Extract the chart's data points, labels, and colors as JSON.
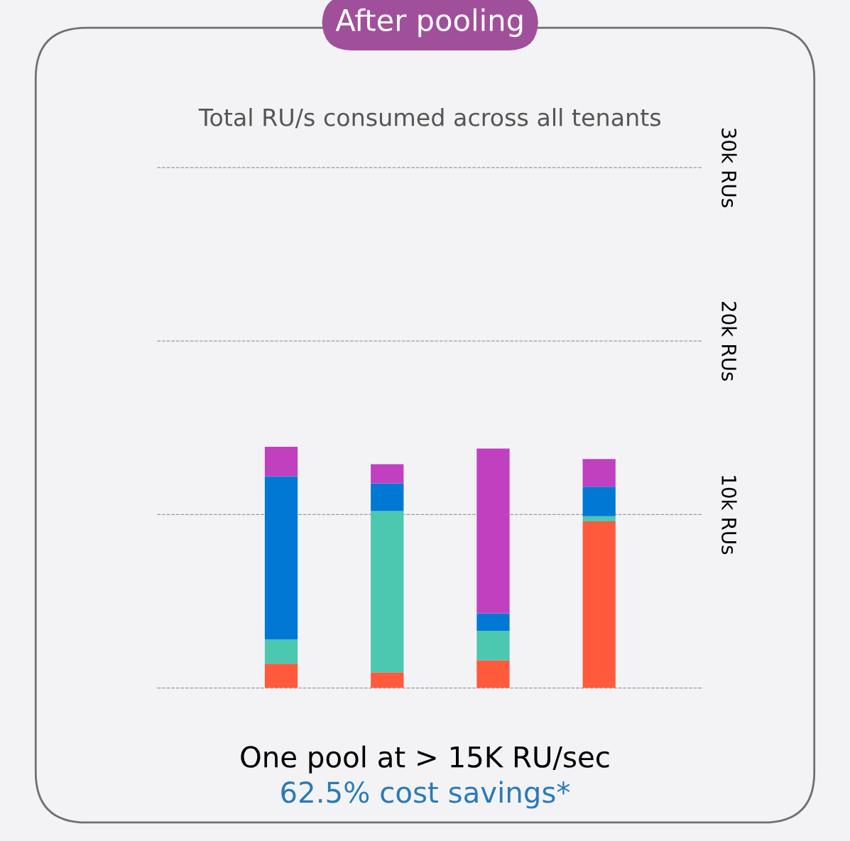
{
  "chart_data": {
    "type": "bar",
    "title": "After pooling",
    "subtitle": "Total RU/s consumed across all tenants",
    "categories": [
      null,
      null,
      null,
      null
    ],
    "stacked": true,
    "series": [
      {
        "color": "#ff5a3c",
        "values": [
          1.4,
          0.9,
          1.6,
          9.6
        ]
      },
      {
        "color": "#4cc7b0",
        "values": [
          1.4,
          9.3,
          1.7,
          0.3
        ]
      },
      {
        "color": "#0078d4",
        "values": [
          9.4,
          1.6,
          1.0,
          1.7
        ]
      },
      {
        "color": "#c040c0",
        "values": [
          1.7,
          1.1,
          9.5,
          1.6
        ]
      }
    ],
    "ylim": [
      0,
      30
    ],
    "yticks": [
      {
        "value": 0,
        "label": null
      },
      {
        "value": 10,
        "label": "10k RUs"
      },
      {
        "value": 20,
        "label": "20k RUs"
      },
      {
        "value": 30,
        "label": "30k RUs"
      }
    ],
    "grid": "y",
    "tick_labels": "y",
    "line_style": "dashed",
    "annotations": [
      "One pool at > 15K RU/sec",
      "62.5% cost savings*"
    ]
  }
}
